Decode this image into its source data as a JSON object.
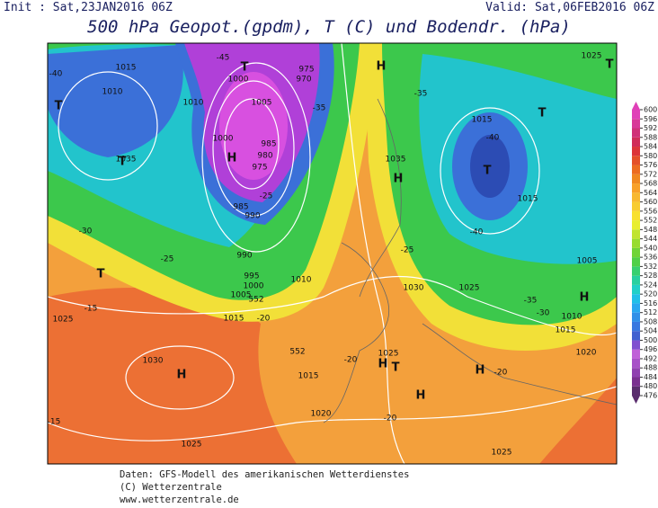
{
  "header": {
    "init": "Init : Sat,23JAN2016 06Z",
    "valid": "Valid: Sat,06FEB2016 06Z",
    "title": "500 hPa Geopot.(gpdm), T (C) und Bodendr. (hPa)"
  },
  "map": {
    "labels": [
      "1015",
      "1010",
      "-40",
      "T",
      "T",
      "1035",
      "-30",
      "T",
      "-25",
      "-15",
      "1025",
      "1030",
      "H",
      "-15",
      "1025",
      "T",
      "1000",
      "1010",
      "1005",
      "1000",
      "H",
      "-45",
      "985",
      "980",
      "975",
      "-25",
      "990",
      "985",
      "990",
      "995",
      "1000",
      "1005",
      "552",
      "1010",
      "1015",
      "-20",
      "975",
      "970",
      "H",
      "-35",
      "-35",
      "1015",
      "-40",
      "T",
      "1035",
      "H",
      "1015",
      "-40",
      "T",
      "T",
      "1025",
      "1030",
      "1025",
      "-25",
      "1005",
      "-35",
      "-30",
      "1010",
      "1015",
      "1020",
      "H",
      "1025",
      "H",
      "T",
      "-20",
      "1015",
      "1020",
      "H",
      "-20",
      "H",
      "-20",
      "1025",
      "552"
    ]
  },
  "colorbar": {
    "ticks": [
      476,
      480,
      484,
      488,
      492,
      496,
      500,
      504,
      508,
      512,
      516,
      520,
      524,
      528,
      532,
      536,
      540,
      544,
      548,
      552,
      556,
      560,
      564,
      568,
      572,
      576,
      580,
      584,
      588,
      592,
      596,
      600
    ],
    "colors": [
      "#5a2d6e",
      "#7a3090",
      "#9040b0",
      "#a850c8",
      "#c060d8",
      "#8050d0",
      "#4060d0",
      "#3878e0",
      "#3090e8",
      "#28a8f0",
      "#20c0e8",
      "#20d0c8",
      "#28d0a0",
      "#38d070",
      "#50d048",
      "#70d438",
      "#98dc30",
      "#c0e430",
      "#e8ee30",
      "#f8e030",
      "#f8cc30",
      "#f8b830",
      "#f8a028",
      "#f08820",
      "#ec6c20",
      "#e45028",
      "#dc3438",
      "#d02c58",
      "#d03078",
      "#d83898",
      "#e040b8"
    ]
  },
  "footer": [
    "Daten: GFS-Modell des amerikanischen Wetterdienstes",
    "(C) Wetterzentrale",
    "www.wetterzentrale.de"
  ]
}
